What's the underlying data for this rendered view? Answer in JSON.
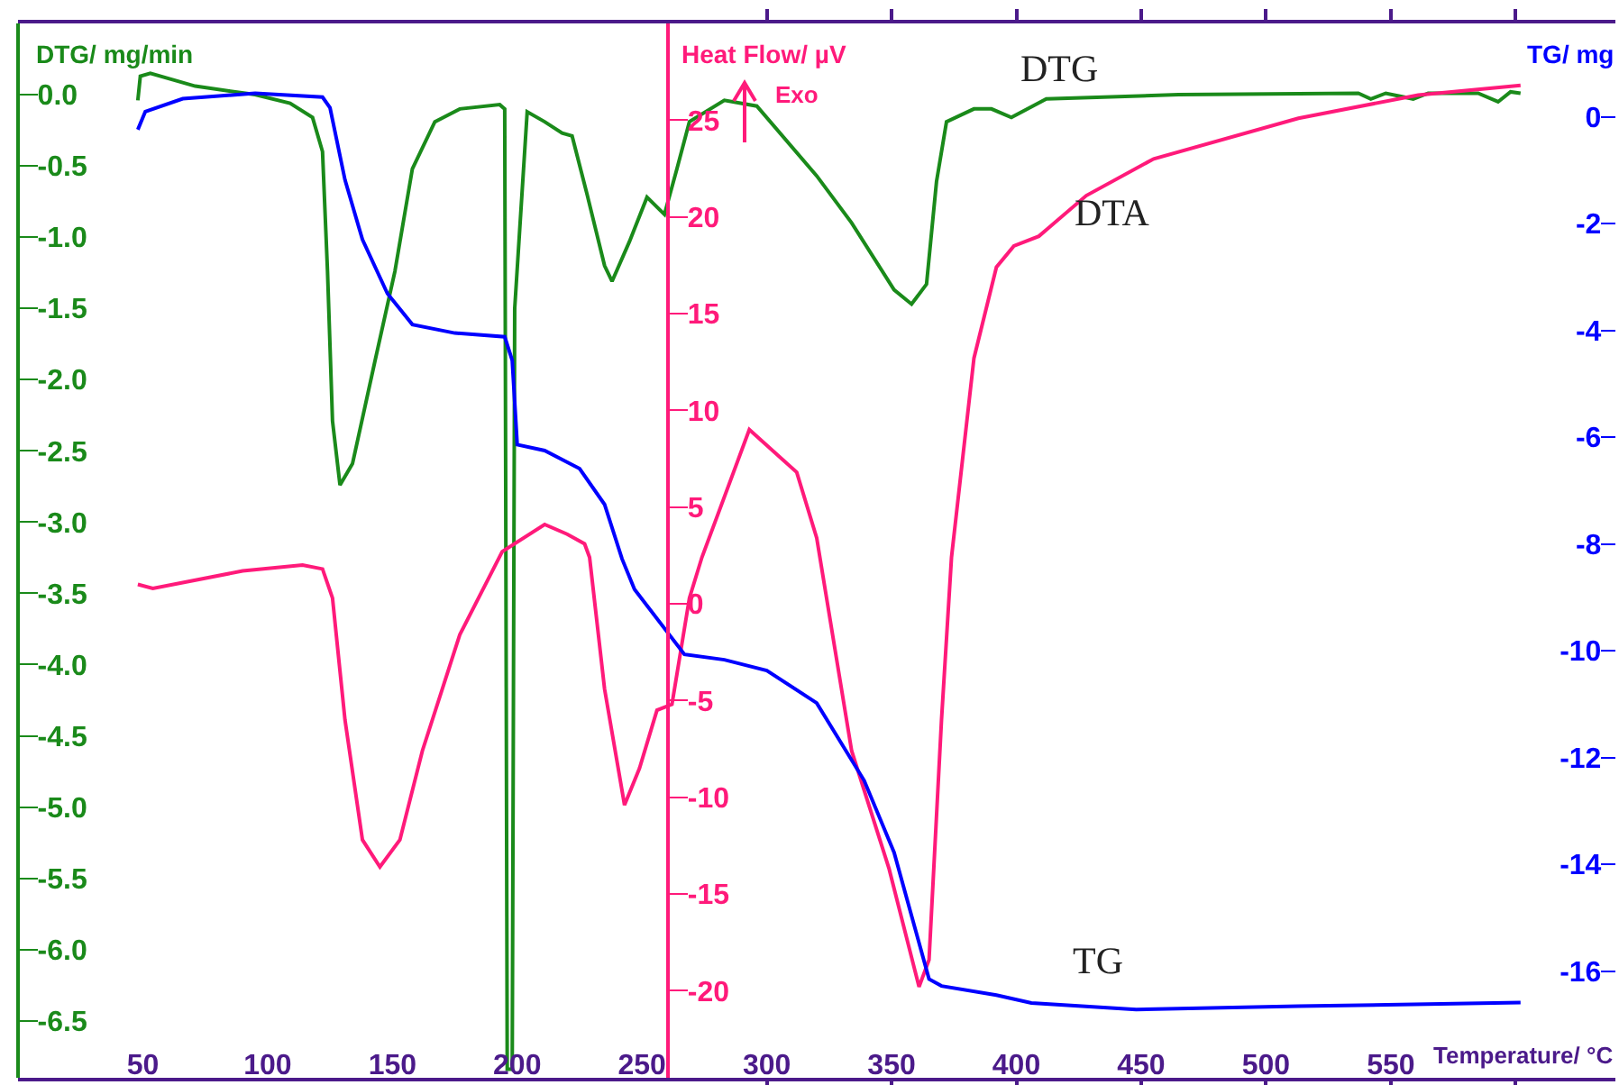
{
  "chart_data": {
    "type": "line",
    "xlabel": "Temperature/ °C",
    "ylabel": "DTG/ mg/min",
    "y2label": "Heat Flow/ µV",
    "y3label": "TG/ mg",
    "annotations": [
      "Exo"
    ],
    "grid": false,
    "xlim": [
      0,
      640
    ],
    "xticks": [
      50,
      100,
      150,
      200,
      250,
      300,
      350,
      400,
      450,
      500,
      550,
      {
        "value": 600,
        "label": null
      }
    ],
    "ylim": [
      -6.9,
      0.5
    ],
    "yticks": [
      {
        "value": 0,
        "label": "0.0"
      },
      -0.5,
      {
        "value": -1,
        "label": "-1.0"
      },
      -1.5,
      {
        "value": -2,
        "label": "-2.0"
      },
      -2.5,
      {
        "value": -3,
        "label": "-3.0"
      },
      -3.5,
      {
        "value": -4,
        "label": "-4.0"
      },
      -4.5,
      {
        "value": -5,
        "label": "-5.0"
      },
      -5.5,
      {
        "value": -6,
        "label": "-6.0"
      },
      -6.5
    ],
    "y2lim": [
      -24.5,
      30
    ],
    "y2ticks": [
      -20,
      -15,
      -10,
      -5,
      0,
      5,
      10,
      15,
      20,
      25
    ],
    "y3lim": [
      -18,
      1.75
    ],
    "y3ticks": [
      0,
      -2,
      -4,
      -6,
      -8,
      -10,
      -12,
      -14,
      -16
    ],
    "series": [
      {
        "name": "DTG",
        "color": "#1a8a1a",
        "x": [
          48,
          49,
          53,
          71,
          95,
          109,
          118,
          122,
          124,
          126,
          129,
          134,
          143,
          151,
          158,
          167,
          177,
          193,
          195,
          196,
          198,
          199,
          204,
          211,
          218,
          222,
          228,
          235,
          238,
          245,
          252,
          259,
          264,
          269,
          283,
          296,
          320,
          334,
          351,
          358,
          364,
          368,
          372,
          383,
          390,
          398,
          412,
          465,
          537,
          542,
          548,
          559,
          565,
          585,
          593,
          598,
          602
        ],
        "values": [
          -0.04,
          0.13,
          0.15,
          0.06,
          0.0,
          -0.06,
          -0.16,
          -0.4,
          -1.24,
          -2.29,
          -2.74,
          -2.59,
          -1.87,
          -1.24,
          -0.52,
          -0.19,
          -0.1,
          -0.07,
          -0.1,
          -6.84,
          -6.84,
          -1.5,
          -0.12,
          -0.19,
          -0.27,
          -0.29,
          -0.7,
          -1.2,
          -1.31,
          -1.03,
          -0.72,
          -0.84,
          -0.52,
          -0.19,
          -0.04,
          -0.08,
          -0.57,
          -0.9,
          -1.37,
          -1.47,
          -1.33,
          -0.61,
          -0.19,
          -0.1,
          -0.1,
          -0.16,
          -0.03,
          0.0,
          0.01,
          -0.03,
          0.01,
          -0.03,
          0.01,
          0.01,
          -0.05,
          0.02,
          0.01
        ]
      },
      {
        "name": "DTA",
        "color": "#ff1a7a",
        "axis": "y2",
        "x": [
          48,
          54,
          90,
          114,
          122,
          126,
          131,
          138,
          145,
          153,
          162,
          177,
          194,
          211,
          220,
          227,
          229,
          235,
          243,
          249,
          256,
          262,
          269,
          274,
          293,
          312,
          320,
          334,
          349,
          361,
          365,
          370,
          374,
          383,
          392,
          399,
          409,
          428,
          455,
          513,
          561,
          602
        ],
        "values": [
          1.0,
          0.8,
          1.7,
          2.0,
          1.8,
          0.3,
          -6.0,
          -12.2,
          -13.6,
          -12.2,
          -7.6,
          -1.6,
          2.7,
          4.1,
          3.6,
          3.1,
          2.4,
          -4.4,
          -10.4,
          -8.5,
          -5.5,
          -5.2,
          0.3,
          2.4,
          9.0,
          6.8,
          3.4,
          -7.6,
          -13.7,
          -19.8,
          -18.4,
          -6.0,
          2.4,
          12.7,
          17.4,
          18.5,
          19.0,
          21.1,
          23.0,
          25.1,
          26.3,
          26.8
        ]
      },
      {
        "name": "TG",
        "color": "#0000ff",
        "axis": "y3",
        "x": [
          48,
          51,
          66,
          95,
          122,
          125,
          131,
          138,
          148,
          158,
          175,
          195,
          198,
          200,
          211,
          225,
          235,
          242,
          247,
          267,
          283,
          300,
          320,
          339,
          351,
          365,
          370,
          392,
          406,
          448,
          513,
          602
        ],
        "values": [
          -0.24,
          0.1,
          0.34,
          0.44,
          0.37,
          0.17,
          -1.18,
          -2.3,
          -3.31,
          -3.89,
          -4.05,
          -4.12,
          -4.56,
          -6.14,
          -6.25,
          -6.59,
          -7.26,
          -8.28,
          -8.85,
          -10.07,
          -10.17,
          -10.37,
          -10.98,
          -12.43,
          -13.78,
          -16.15,
          -16.28,
          -16.45,
          -16.6,
          -16.72,
          -16.66,
          -16.59
        ]
      }
    ]
  }
}
